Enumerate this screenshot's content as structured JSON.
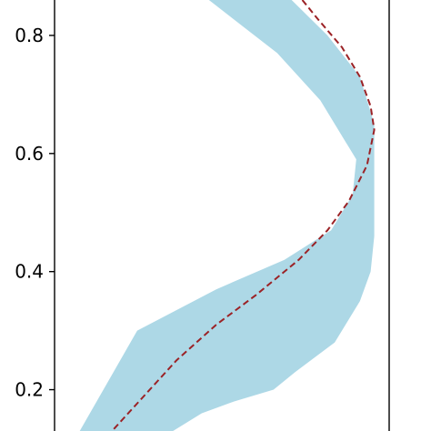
{
  "chart_data": {
    "type": "area",
    "title": "",
    "xlabel": "",
    "ylabel": "",
    "ylim": [
      0.13,
      0.86
    ],
    "xlim": [
      0,
      1
    ],
    "grid": false,
    "y_ticks": [
      0.2,
      0.4,
      0.6,
      0.8
    ],
    "y_tick_labels": [
      "0.2",
      "0.4",
      "0.6",
      "0.8"
    ],
    "series": [
      {
        "kind": "band",
        "color": "#add8e6",
        "left": [
          {
            "x": 0.43,
            "y": 0.86
          },
          {
            "x": 0.62,
            "y": 0.77
          },
          {
            "x": 0.74,
            "y": 0.69
          },
          {
            "x": 0.84,
            "y": 0.59
          },
          {
            "x": 0.83,
            "y": 0.53
          },
          {
            "x": 0.77,
            "y": 0.47
          },
          {
            "x": 0.64,
            "y": 0.42
          },
          {
            "x": 0.45,
            "y": 0.37
          },
          {
            "x": 0.23,
            "y": 0.3
          },
          {
            "x": 0.07,
            "y": 0.13
          }
        ],
        "right": [
          {
            "x": 0.66,
            "y": 0.86
          },
          {
            "x": 0.76,
            "y": 0.8
          },
          {
            "x": 0.85,
            "y": 0.73
          },
          {
            "x": 0.89,
            "y": 0.65
          },
          {
            "x": 0.89,
            "y": 0.53
          },
          {
            "x": 0.89,
            "y": 0.46
          },
          {
            "x": 0.88,
            "y": 0.4
          },
          {
            "x": 0.85,
            "y": 0.35
          },
          {
            "x": 0.78,
            "y": 0.28
          },
          {
            "x": 0.67,
            "y": 0.23
          },
          {
            "x": 0.61,
            "y": 0.2
          },
          {
            "x": 0.5,
            "y": 0.18
          },
          {
            "x": 0.41,
            "y": 0.16
          },
          {
            "x": 0.33,
            "y": 0.13
          }
        ]
      },
      {
        "kind": "line",
        "style": "dashed",
        "color": "#9b2226",
        "points": [
          {
            "x": 0.69,
            "y": 0.86
          },
          {
            "x": 0.73,
            "y": 0.83
          },
          {
            "x": 0.8,
            "y": 0.78
          },
          {
            "x": 0.85,
            "y": 0.73
          },
          {
            "x": 0.88,
            "y": 0.68
          },
          {
            "x": 0.89,
            "y": 0.64
          },
          {
            "x": 0.87,
            "y": 0.58
          },
          {
            "x": 0.82,
            "y": 0.52
          },
          {
            "x": 0.76,
            "y": 0.47
          },
          {
            "x": 0.68,
            "y": 0.42
          },
          {
            "x": 0.56,
            "y": 0.36
          },
          {
            "x": 0.45,
            "y": 0.31
          },
          {
            "x": 0.34,
            "y": 0.25
          },
          {
            "x": 0.25,
            "y": 0.19
          },
          {
            "x": 0.16,
            "y": 0.13
          }
        ]
      }
    ]
  }
}
